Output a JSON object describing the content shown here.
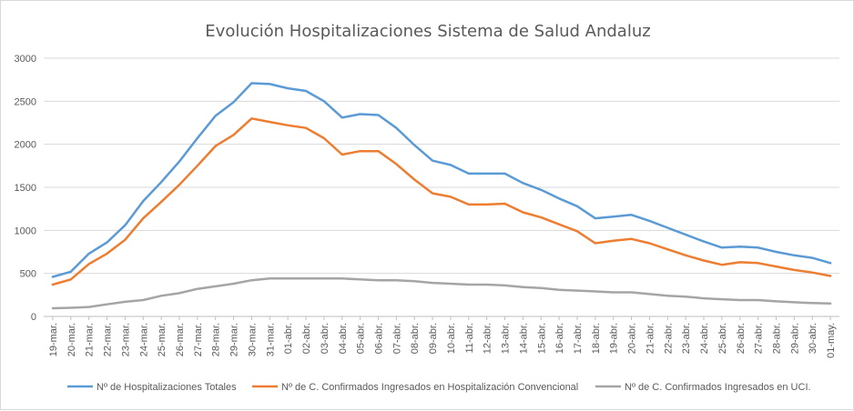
{
  "chart_data": {
    "type": "line",
    "title": "Evolución Hospitalizaciones Sistema de Salud Andaluz",
    "xlabel": "",
    "ylabel": "",
    "ylim": [
      0,
      3000
    ],
    "yticks": [
      0,
      500,
      1000,
      1500,
      2000,
      2500,
      3000
    ],
    "grid": "horizontal",
    "legend_position": "bottom",
    "categories": [
      "19-mar.",
      "20-mar.",
      "21-mar.",
      "22-mar.",
      "23-mar.",
      "24-mar.",
      "25-mar.",
      "26-mar.",
      "27-mar.",
      "28-mar.",
      "29-mar.",
      "30-mar.",
      "31-mar.",
      "01-abr.",
      "02-abr.",
      "03-abr.",
      "04-abr.",
      "05-abr.",
      "06-abr.",
      "07-abr.",
      "08-abr.",
      "09-abr.",
      "10-abr.",
      "11-abr.",
      "12-abr.",
      "13-abr.",
      "14-abr.",
      "15-abr.",
      "16-abr.",
      "17-abr.",
      "18-abr.",
      "19-abr.",
      "20-abr.",
      "21-abr.",
      "22-abr.",
      "23-abr.",
      "24-abr.",
      "25-abr.",
      "26-abr.",
      "27-abr.",
      "28-abr.",
      "29-abr.",
      "30-abr.",
      "01-may."
    ],
    "series": [
      {
        "name": "Nº de Hospitalizaciones Totales",
        "color": "#5b9bd5",
        "values": [
          460,
          520,
          730,
          860,
          1060,
          1340,
          1560,
          1800,
          2070,
          2330,
          2490,
          2710,
          2700,
          2650,
          2620,
          2500,
          2310,
          2350,
          2340,
          2190,
          1990,
          1810,
          1760,
          1660,
          1660,
          1660,
          1550,
          1470,
          1370,
          1280,
          1140,
          1160,
          1180,
          1110,
          1030,
          950,
          870,
          800,
          810,
          800,
          750,
          710,
          680,
          620
        ]
      },
      {
        "name": "Nº de C. Confirmados Ingresados en Hospitalización Convencional",
        "color": "#ed7d31",
        "values": [
          370,
          430,
          610,
          730,
          890,
          1140,
          1330,
          1530,
          1750,
          1980,
          2110,
          2300,
          2260,
          2220,
          2190,
          2070,
          1880,
          1920,
          1920,
          1770,
          1590,
          1430,
          1390,
          1300,
          1300,
          1310,
          1210,
          1150,
          1070,
          990,
          850,
          880,
          900,
          850,
          780,
          710,
          650,
          600,
          630,
          620,
          580,
          540,
          510,
          470
        ]
      },
      {
        "name": "Nº de C. Confirmados Ingresados en UCI.",
        "color": "#a5a5a5",
        "values": [
          95,
          100,
          110,
          140,
          170,
          190,
          240,
          270,
          320,
          350,
          380,
          420,
          440,
          440,
          440,
          440,
          440,
          430,
          420,
          420,
          410,
          390,
          380,
          370,
          370,
          360,
          340,
          330,
          310,
          300,
          290,
          280,
          280,
          260,
          240,
          230,
          210,
          200,
          190,
          190,
          175,
          165,
          155,
          150
        ]
      }
    ]
  }
}
